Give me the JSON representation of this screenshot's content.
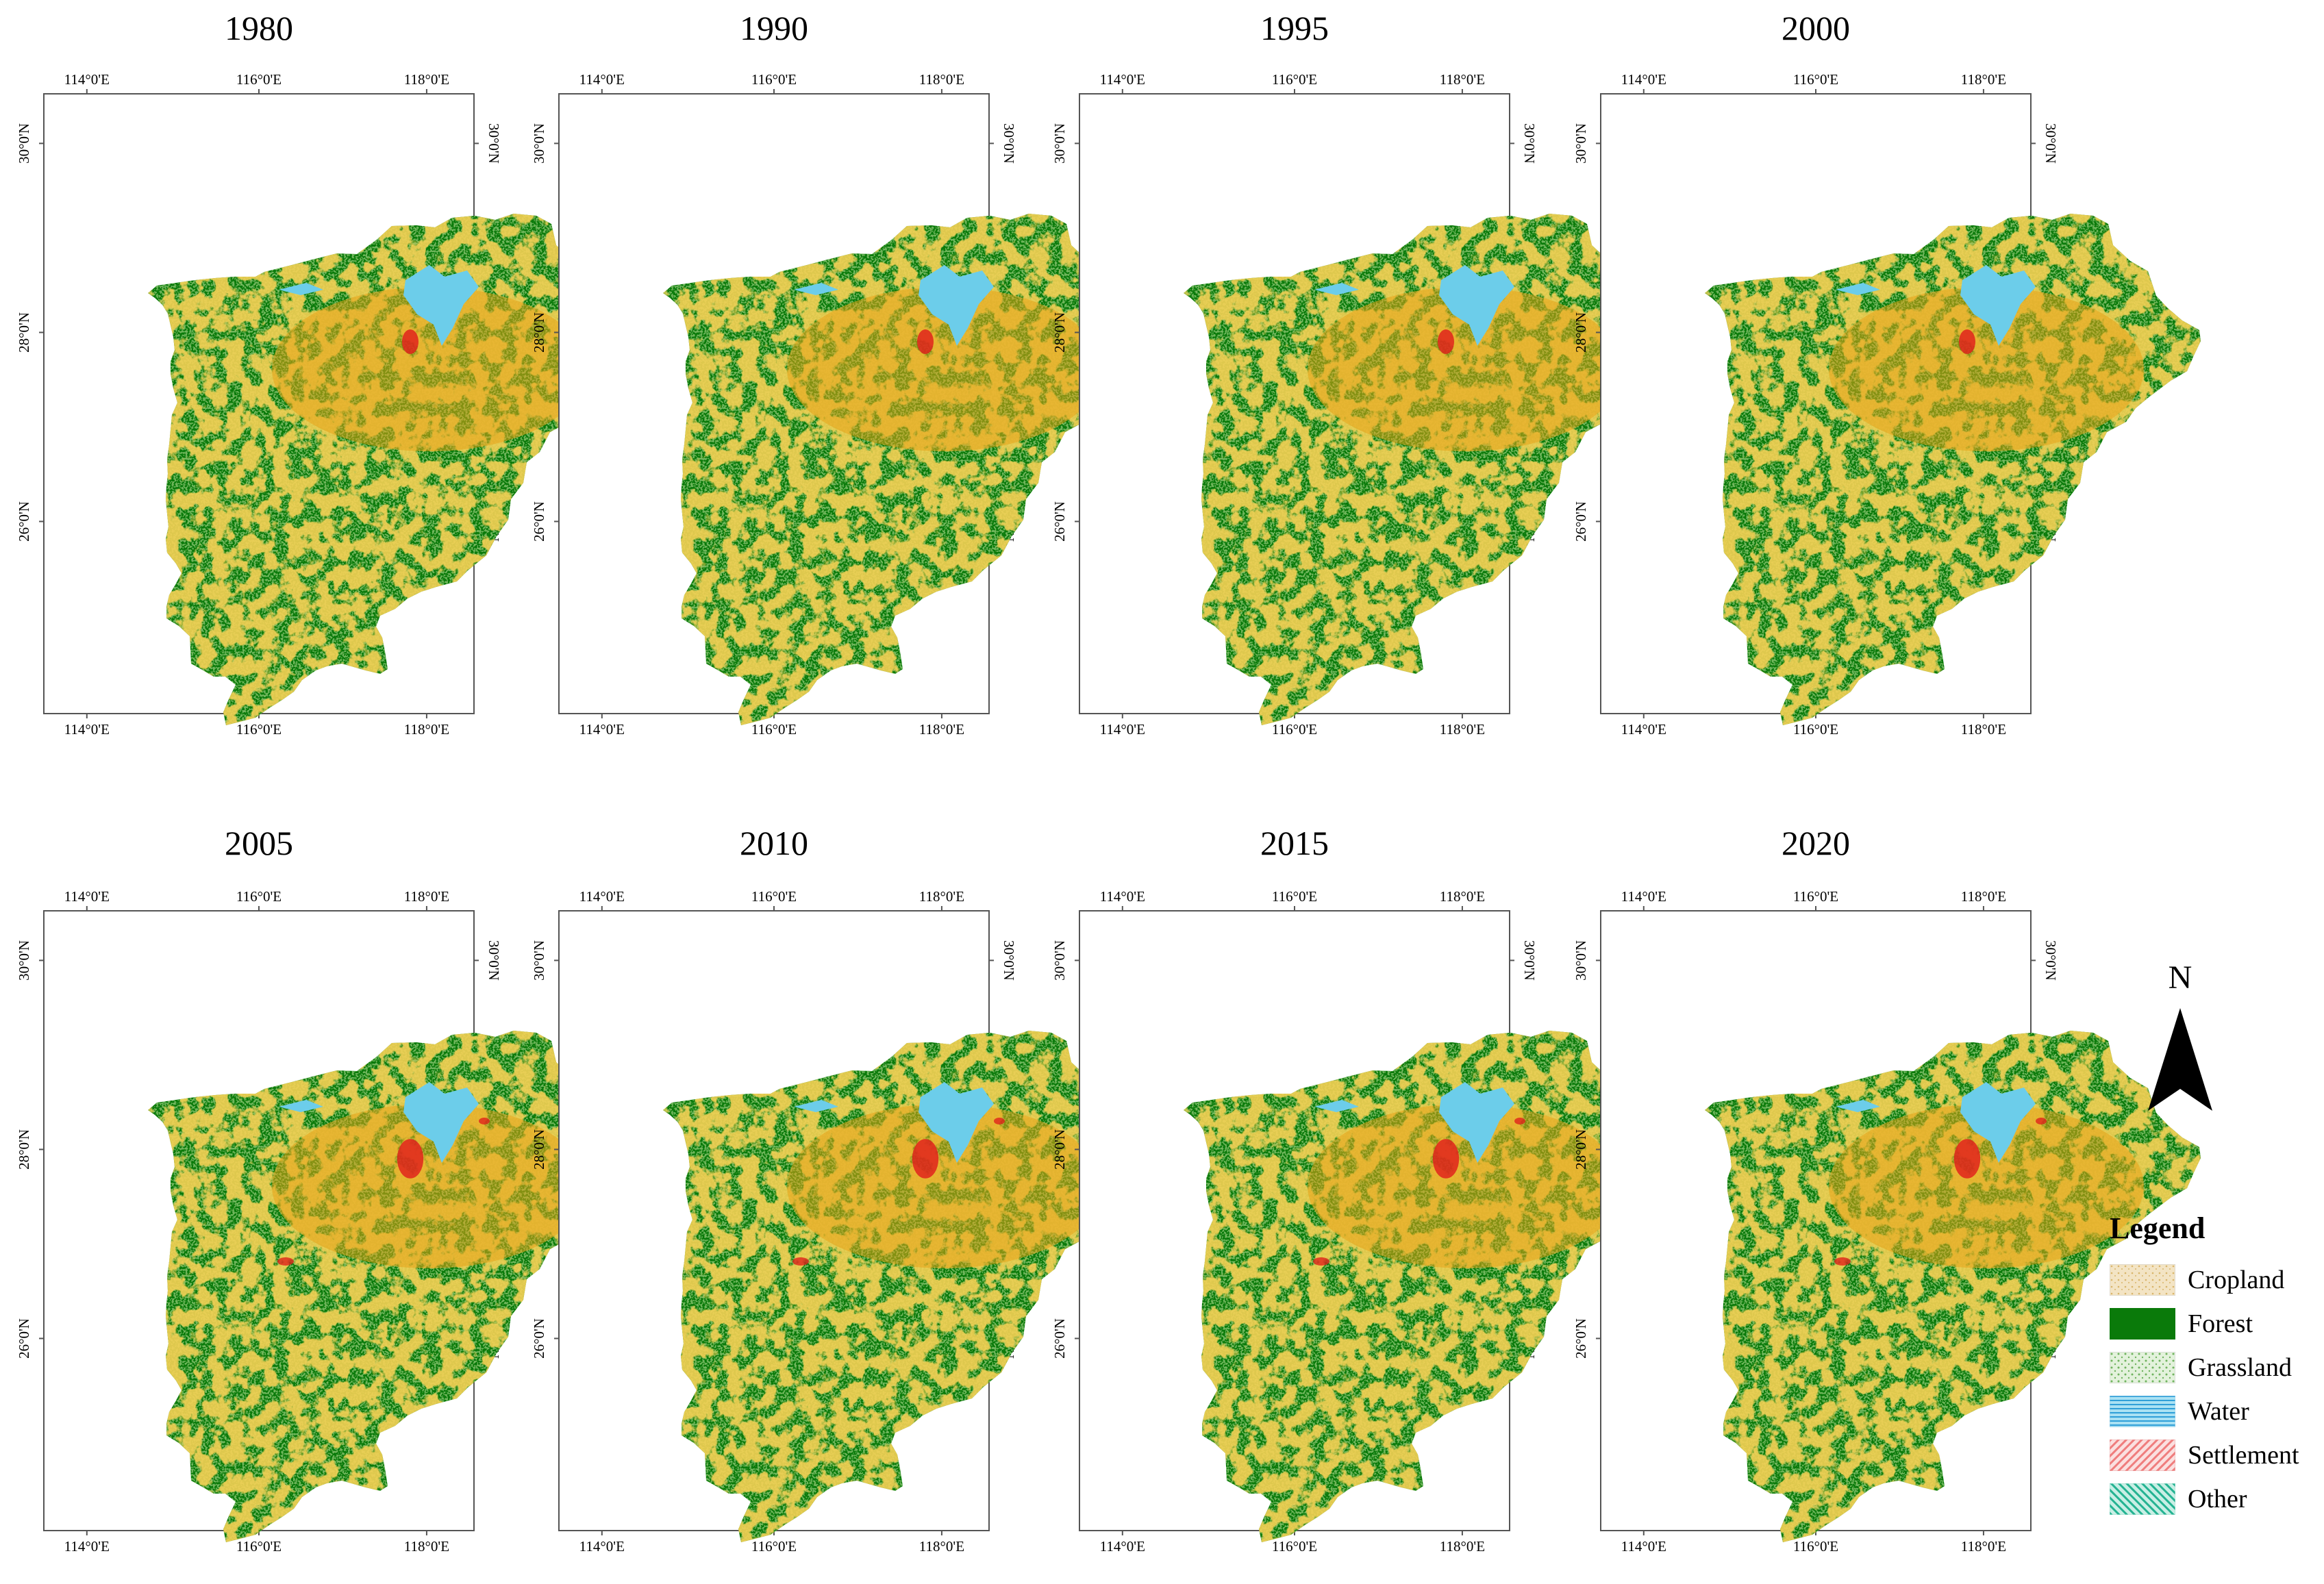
{
  "panels": [
    {
      "year": "1980"
    },
    {
      "year": "1990"
    },
    {
      "year": "1995"
    },
    {
      "year": "2000"
    },
    {
      "year": "2005"
    },
    {
      "year": "2010"
    },
    {
      "year": "2015"
    },
    {
      "year": "2020"
    }
  ],
  "axes": {
    "lon_ticks": [
      "114°0'E",
      "116°0'E",
      "118°0'E"
    ],
    "lat_ticks": [
      "30°0'N",
      "28°0'N",
      "26°0'N"
    ]
  },
  "north_arrow": {
    "label": "N"
  },
  "legend": {
    "title": "Legend",
    "items": [
      {
        "label": "Cropland",
        "color": "#f3e4c4",
        "pattern": "dots"
      },
      {
        "label": "Forest",
        "color": "#0a7a0a",
        "pattern": "solid"
      },
      {
        "label": "Grassland",
        "color": "#bfe0b4",
        "pattern": "dots"
      },
      {
        "label": "Water",
        "color": "#5cc8ea",
        "pattern": "lines"
      },
      {
        "label": "Settlement",
        "color": "#f28b8b",
        "pattern": "hatch"
      },
      {
        "label": "Other",
        "color": "#3cc4a8",
        "pattern": "hatch"
      }
    ]
  },
  "colors": {
    "forest": "#0a7a0a",
    "cropland_map": "#e8a317",
    "water_map": "#6ccdea",
    "settlement_map": "#e0231c"
  }
}
